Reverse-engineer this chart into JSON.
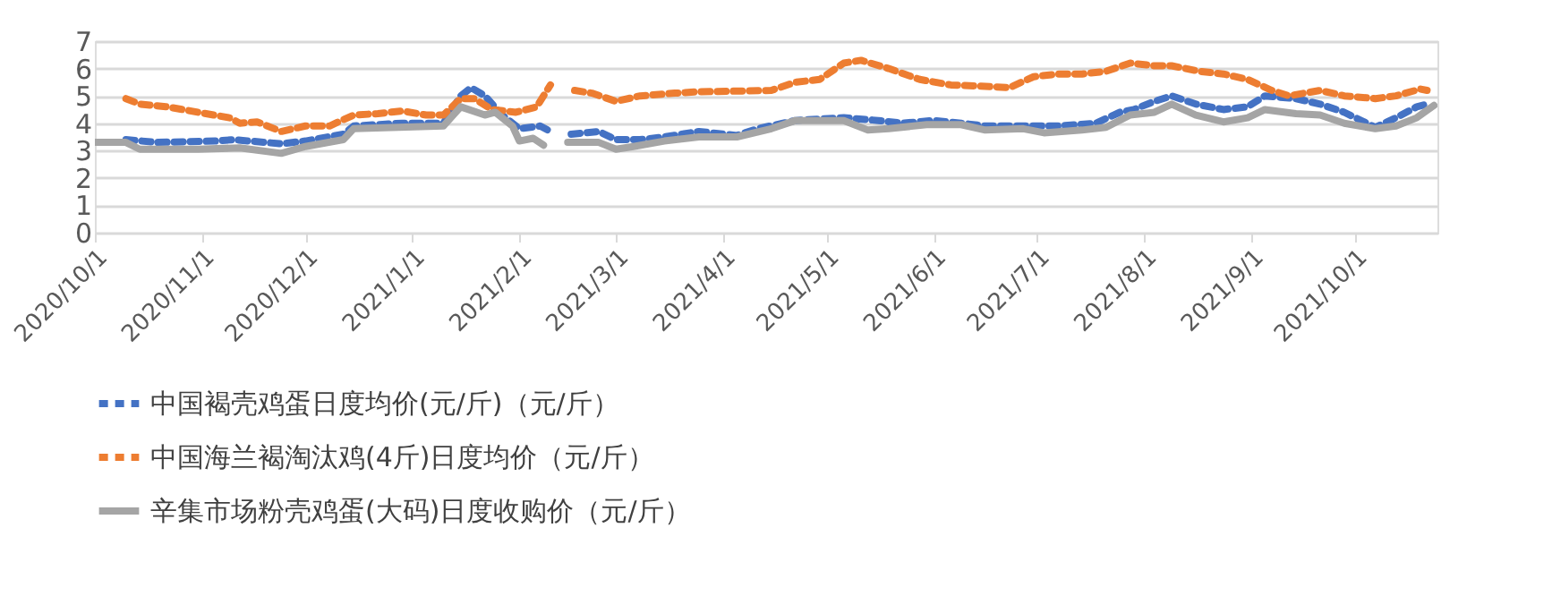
{
  "chart_data": {
    "type": "line",
    "xlim": [
      "2020-10-01",
      "2021-10-25"
    ],
    "xticks": [
      {
        "value": "2020-10-01",
        "label": "2020/10/1"
      },
      {
        "value": "2020-11-01",
        "label": "2020/11/1"
      },
      {
        "value": "2020-12-01",
        "label": "2020/12/1"
      },
      {
        "value": "2021-01-01",
        "label": "2021/1/1"
      },
      {
        "value": "2021-02-01",
        "label": "2021/2/1"
      },
      {
        "value": "2021-03-01",
        "label": "2021/3/1"
      },
      {
        "value": "2021-04-01",
        "label": "2021/4/1"
      },
      {
        "value": "2021-05-01",
        "label": "2021/5/1"
      },
      {
        "value": "2021-06-01",
        "label": "2021/6/1"
      },
      {
        "value": "2021-07-01",
        "label": "2021/7/1"
      },
      {
        "value": "2021-08-01",
        "label": "2021/8/1"
      },
      {
        "value": "2021-09-01",
        "label": "2021/9/1"
      },
      {
        "value": "2021-10-01",
        "label": "2021/10/1"
      }
    ],
    "ylim": [
      0,
      7
    ],
    "yticks": [
      0,
      1,
      2,
      3,
      4,
      5,
      6,
      7
    ],
    "grid": "y",
    "legend": "bottom",
    "marker": "none",
    "series": [
      {
        "name": "中国褐壳鸡蛋日度均价(元/斤)（元/斤）",
        "color": "#4472c4",
        "line_style": "dashed",
        "x": [
          "2020-10-10",
          "2020-10-19",
          "2020-11-05",
          "2020-11-10",
          "2020-11-24",
          "2020-12-01",
          "2020-12-12",
          "2020-12-15",
          "2020-12-29",
          "2021-01-10",
          "2021-01-15",
          "2021-01-18",
          "2021-01-22",
          "2021-01-27",
          "2021-02-01",
          "2021-02-07",
          "2021-02-10",
          "2021-02-12",
          "2021-02-16",
          "2021-02-24",
          "2021-03-01",
          "2021-03-08",
          "2021-03-15",
          "2021-03-25",
          "2021-04-05",
          "2021-04-11",
          "2021-04-22",
          "2021-05-06",
          "2021-05-16",
          "2021-05-23",
          "2021-06-01",
          "2021-06-09",
          "2021-06-16",
          "2021-06-27",
          "2021-07-07",
          "2021-07-18",
          "2021-07-25",
          "2021-07-29",
          "2021-08-04",
          "2021-08-09",
          "2021-08-16",
          "2021-08-24",
          "2021-08-31",
          "2021-09-05",
          "2021-09-14",
          "2021-09-21",
          "2021-09-28",
          "2021-10-07",
          "2021-10-13",
          "2021-10-19",
          "2021-10-22"
        ],
        "values": [
          3.4,
          3.3,
          3.35,
          3.4,
          3.25,
          3.35,
          3.6,
          3.9,
          4.0,
          4.0,
          5.0,
          5.3,
          5.0,
          4.3,
          3.8,
          3.9,
          3.7,
          null,
          3.6,
          3.7,
          3.4,
          3.4,
          3.5,
          3.7,
          3.55,
          3.8,
          4.1,
          4.2,
          4.1,
          4.0,
          4.1,
          4.0,
          3.9,
          3.9,
          3.9,
          4.0,
          4.4,
          4.5,
          4.8,
          5.0,
          4.7,
          4.5,
          4.6,
          5.0,
          4.9,
          4.7,
          4.4,
          3.85,
          4.2,
          4.6,
          4.7
        ]
      },
      {
        "name": "中国海兰褐淘汰鸡(4斤)日度均价（元/斤）",
        "color": "#ed7d31",
        "line_style": "dashed",
        "x": [
          "2020-10-10",
          "2020-10-14",
          "2020-10-22",
          "2020-10-31",
          "2020-11-09",
          "2020-11-12",
          "2020-11-17",
          "2020-11-24",
          "2020-12-01",
          "2020-12-08",
          "2020-12-15",
          "2020-12-22",
          "2020-12-29",
          "2021-01-05",
          "2021-01-10",
          "2021-01-15",
          "2021-01-19",
          "2021-01-24",
          "2021-01-31",
          "2021-02-06",
          "2021-02-08",
          "2021-02-10",
          "2021-02-12",
          "2021-02-17",
          "2021-02-22",
          "2021-03-01",
          "2021-03-08",
          "2021-03-18",
          "2021-03-25",
          "2021-04-15",
          "2021-04-22",
          "2021-04-29",
          "2021-05-06",
          "2021-05-11",
          "2021-05-19",
          "2021-05-28",
          "2021-06-06",
          "2021-06-16",
          "2021-06-23",
          "2021-06-30",
          "2021-07-07",
          "2021-07-14",
          "2021-07-21",
          "2021-07-28",
          "2021-08-04",
          "2021-08-09",
          "2021-08-17",
          "2021-08-24",
          "2021-08-31",
          "2021-09-07",
          "2021-09-12",
          "2021-09-21",
          "2021-09-28",
          "2021-10-07",
          "2021-10-13",
          "2021-10-20",
          "2021-10-22"
        ],
        "values": [
          4.9,
          4.7,
          4.6,
          4.4,
          4.2,
          4.0,
          4.05,
          3.7,
          3.9,
          3.9,
          4.3,
          4.35,
          4.45,
          4.3,
          4.3,
          4.9,
          4.9,
          4.5,
          4.4,
          4.6,
          5.0,
          5.4,
          null,
          5.2,
          5.1,
          4.8,
          5.0,
          5.1,
          5.15,
          5.2,
          5.5,
          5.6,
          6.2,
          6.3,
          6.0,
          5.6,
          5.4,
          5.35,
          5.3,
          5.7,
          5.8,
          5.8,
          5.9,
          6.2,
          6.1,
          6.1,
          5.9,
          5.8,
          5.6,
          5.2,
          5.0,
          5.2,
          5.0,
          4.9,
          5.0,
          5.25,
          5.2
        ]
      },
      {
        "name": "辛集市场粉壳鸡蛋(大码)日度收购价（元/斤）",
        "color": "#a5a5a5",
        "line_style": "solid",
        "x": [
          "2020-10-01",
          "2020-10-10",
          "2020-10-14",
          "2020-10-31",
          "2020-11-12",
          "2020-11-24",
          "2020-12-01",
          "2020-12-12",
          "2020-12-15",
          "2020-12-28",
          "2021-01-10",
          "2021-01-15",
          "2021-01-22",
          "2021-01-25",
          "2021-01-30",
          "2021-02-01",
          "2021-02-05",
          "2021-02-08",
          "2021-02-12",
          "2021-02-15",
          "2021-02-24",
          "2021-03-01",
          "2021-03-06",
          "2021-03-15",
          "2021-03-25",
          "2021-04-05",
          "2021-04-15",
          "2021-04-22",
          "2021-05-06",
          "2021-05-13",
          "2021-05-19",
          "2021-05-30",
          "2021-06-09",
          "2021-06-16",
          "2021-06-27",
          "2021-07-03",
          "2021-07-14",
          "2021-07-21",
          "2021-07-28",
          "2021-08-04",
          "2021-08-09",
          "2021-08-16",
          "2021-08-24",
          "2021-08-31",
          "2021-09-05",
          "2021-09-14",
          "2021-09-21",
          "2021-09-28",
          "2021-10-07",
          "2021-10-13",
          "2021-10-19",
          "2021-10-24"
        ],
        "values": [
          3.3,
          3.3,
          3.05,
          3.05,
          3.1,
          2.9,
          3.15,
          3.4,
          3.8,
          3.85,
          3.9,
          4.6,
          4.3,
          4.4,
          3.9,
          3.35,
          3.45,
          3.2,
          null,
          3.3,
          3.3,
          3.05,
          3.15,
          3.35,
          3.5,
          3.5,
          3.8,
          4.1,
          4.1,
          3.75,
          3.8,
          3.95,
          3.95,
          3.75,
          3.8,
          3.65,
          3.75,
          3.85,
          4.3,
          4.4,
          4.7,
          4.3,
          4.05,
          4.2,
          4.5,
          4.35,
          4.3,
          4.0,
          3.8,
          3.9,
          4.2,
          4.65
        ]
      }
    ]
  }
}
